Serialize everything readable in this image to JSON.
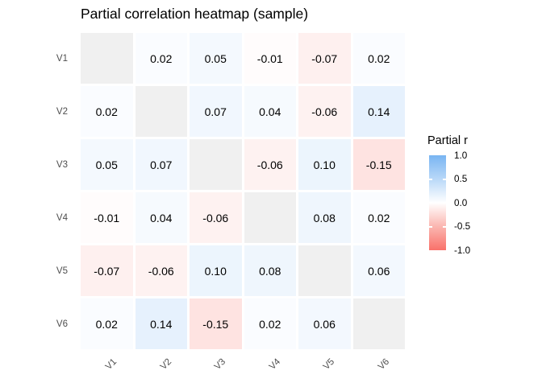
{
  "title": "Partial correlation heatmap (sample)",
  "legend": {
    "title": "Partial r",
    "tick_labels": [
      "1.0",
      "0.5",
      "0.0",
      "-0.5",
      "-1.0"
    ]
  },
  "colors": {
    "high": "#79b5f2",
    "mid": "#ffffff",
    "low": "#f9716a",
    "na_cell": "#f0f0f0",
    "axis_text": "#4d4d4d",
    "cell_text": "#000000"
  },
  "chart_data": {
    "type": "heatmap",
    "title": "Partial correlation heatmap (sample)",
    "x_labels": [
      "V1",
      "V2",
      "V3",
      "V4",
      "V5",
      "V6"
    ],
    "y_labels": [
      "V1",
      "V2",
      "V3",
      "V4",
      "V5",
      "V6"
    ],
    "values": [
      [
        null,
        0.02,
        0.05,
        -0.01,
        -0.07,
        0.02
      ],
      [
        0.02,
        null,
        0.07,
        0.04,
        -0.06,
        0.14
      ],
      [
        0.05,
        0.07,
        null,
        -0.06,
        0.1,
        -0.15
      ],
      [
        -0.01,
        0.04,
        -0.06,
        null,
        0.08,
        0.02
      ],
      [
        -0.07,
        -0.06,
        0.1,
        0.08,
        null,
        0.06
      ],
      [
        0.02,
        0.14,
        -0.15,
        0.02,
        0.06,
        null
      ]
    ],
    "value_decimals": 2,
    "legend_title": "Partial r",
    "color_scale": {
      "low": -1.0,
      "mid": 0.0,
      "high": 1.0,
      "low_color": "#f9716a",
      "mid_color": "#ffffff",
      "high_color": "#79b5f2",
      "na_color": "#f0f0f0"
    },
    "legend_ticks": [
      1.0,
      0.5,
      0.0,
      -0.5,
      -1.0
    ],
    "grid": false,
    "legend_position": "right"
  }
}
